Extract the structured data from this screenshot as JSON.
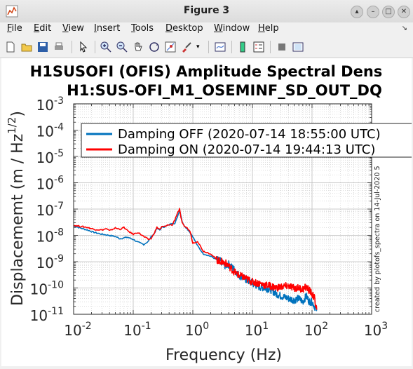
{
  "window": {
    "title": "Figure 3",
    "controls": [
      "up",
      "minimize",
      "maximize",
      "close"
    ]
  },
  "menu": [
    "File",
    "Edit",
    "View",
    "Insert",
    "Tools",
    "Desktop",
    "Window",
    "Help"
  ],
  "toolbar_icons": [
    "new-figure-icon",
    "open-file-icon",
    "save-icon",
    "print-icon",
    "pointer-icon",
    "zoom-in-icon",
    "zoom-out-icon",
    "pan-hand-icon",
    "rotate-3d-icon",
    "data-cursor-icon",
    "brush-icon",
    "link-plot-icon",
    "colorbar-icon",
    "legend-icon",
    "hide-plot-tools-icon",
    "show-plot-tools-icon"
  ],
  "colors": {
    "off": "#0072bd",
    "on": "#ff0000"
  },
  "chart_data": {
    "type": "line",
    "title_line1": "H1SUSOFI (OFIS) Amplitude Spectral Dens",
    "title_line2": "H1:SUS-OFI_M1_OSEMINF_SD_OUT_DQ",
    "xlabel": "Frequency (Hz)",
    "ylabel": "Displacememt (m / Hz",
    "ylabel_sup": "1/2",
    "ylabel_close": ")",
    "xscale": "log",
    "yscale": "log",
    "xlim": [
      0.01,
      1000
    ],
    "ylim": [
      1e-11,
      0.001
    ],
    "grid": true,
    "legend_position": "top-right",
    "xticks": [
      0.01,
      0.1,
      1,
      10,
      100,
      1000
    ],
    "yticks": [
      1e-11,
      1e-10,
      1e-09,
      1e-08,
      1e-07,
      1e-06,
      1e-05,
      0.0001,
      0.001
    ],
    "xtick_base": [
      "10",
      "10",
      "10",
      "10",
      "10",
      "10"
    ],
    "xtick_exp": [
      "-2",
      "-1",
      "0",
      "1",
      "2",
      "3"
    ],
    "ytick_base": [
      "10",
      "10",
      "10",
      "10",
      "10",
      "10",
      "10",
      "10",
      "10"
    ],
    "ytick_exp": [
      "-11",
      "-10",
      "-9",
      "-8",
      "-7",
      "-6",
      "-5",
      "-4",
      "-3"
    ],
    "side_note": "created by plotofs_spectra on 14-Jul-2020 5",
    "series": [
      {
        "name": "Damping OFF (2020-07-14 18:55:00 UTC)",
        "color": "#0072bd",
        "x": [
          0.01,
          0.013,
          0.017,
          0.022,
          0.03,
          0.04,
          0.05,
          0.06,
          0.07,
          0.08,
          0.1,
          0.12,
          0.15,
          0.18,
          0.2,
          0.22,
          0.25,
          0.28,
          0.3,
          0.35,
          0.4,
          0.45,
          0.5,
          0.55,
          0.6,
          0.63,
          0.66,
          0.7,
          0.8,
          0.9,
          1.0,
          1.2,
          1.5,
          2,
          2.5,
          3,
          3.5,
          4,
          5,
          6,
          7,
          8,
          10,
          13,
          16,
          20,
          25,
          30,
          40,
          50,
          60,
          70,
          80,
          90,
          100,
          110,
          120
        ],
        "y": [
          2.3e-08,
          1.9e-08,
          1.6e-08,
          1.3e-08,
          1.1e-08,
          1e-08,
          9e-09,
          7.5e-09,
          8e-09,
          8.5e-09,
          7e-09,
          5.5e-09,
          4.5e-09,
          6e-09,
          9e-09,
          1.1e-08,
          1.8e-08,
          1.6e-08,
          2e-08,
          2.2e-08,
          2.5e-08,
          3e-08,
          2.8e-08,
          5e-08,
          9e-08,
          6e-08,
          3.5e-08,
          2.5e-08,
          1.8e-08,
          1.3e-08,
          9e-09,
          4e-09,
          2e-09,
          1.6e-09,
          1.2e-09,
          1e-09,
          7e-10,
          8e-10,
          5e-10,
          3e-10,
          2.5e-10,
          2e-10,
          1.5e-10,
          1.1e-10,
          1e-10,
          9e-11,
          6e-11,
          5e-11,
          4e-11,
          3.5e-11,
          4e-11,
          3e-11,
          5e-11,
          3e-11,
          3e-11,
          2e-11,
          1.5e-11
        ]
      },
      {
        "name": "Damping ON (2020-07-14 19:44:13 UTC)",
        "color": "#ff0000",
        "x": [
          0.01,
          0.013,
          0.017,
          0.022,
          0.03,
          0.035,
          0.04,
          0.05,
          0.06,
          0.07,
          0.08,
          0.1,
          0.12,
          0.15,
          0.18,
          0.2,
          0.22,
          0.25,
          0.28,
          0.3,
          0.35,
          0.4,
          0.45,
          0.5,
          0.55,
          0.6,
          0.63,
          0.66,
          0.7,
          0.8,
          0.9,
          1.0,
          1.2,
          1.5,
          2,
          2.5,
          3,
          3.5,
          4,
          5,
          6,
          7,
          8,
          10,
          13,
          16,
          20,
          25,
          30,
          40,
          50,
          60,
          70,
          80,
          90,
          100,
          110,
          120
        ],
        "y": [
          2.4e-08,
          2.2e-08,
          2e-08,
          1.7e-08,
          1.6e-08,
          1.8e-08,
          1.5e-08,
          1.9e-08,
          1.7e-08,
          2e-08,
          1.5e-08,
          1.1e-08,
          1.3e-08,
          9e-09,
          7e-09,
          7.5e-09,
          1.1e-08,
          2e-08,
          1.7e-08,
          2.1e-08,
          2.2e-08,
          2.6e-08,
          2.4e-08,
          4e-08,
          7e-08,
          1e-07,
          5e-08,
          3e-08,
          2.4e-08,
          1.9e-08,
          1.4e-08,
          5e-09,
          6e-09,
          2.5e-09,
          2e-09,
          1.2e-09,
          1e-09,
          9e-10,
          7e-10,
          4e-10,
          3e-10,
          2.6e-10,
          2.2e-10,
          1.7e-10,
          1.5e-10,
          1.3e-10,
          1.2e-10,
          1e-10,
          1.1e-10,
          1.2e-10,
          1e-10,
          1e-10,
          9e-11,
          1.1e-10,
          8e-11,
          6e-11,
          4e-11,
          1.5e-11
        ]
      }
    ]
  }
}
